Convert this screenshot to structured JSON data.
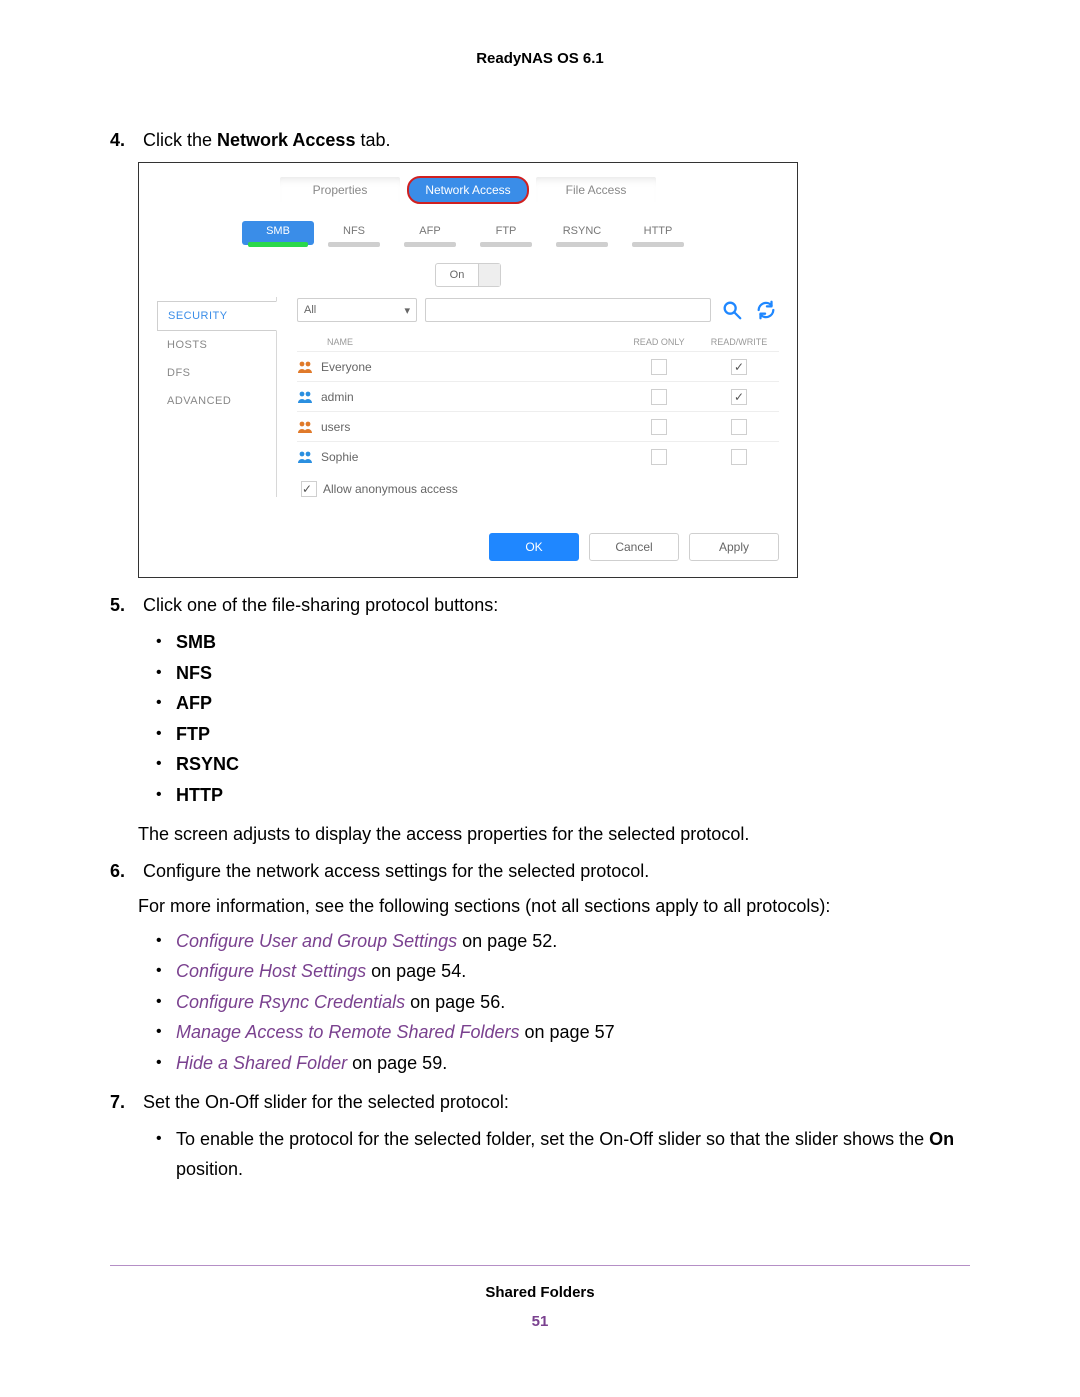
{
  "doc": {
    "header": "ReadyNAS OS 6.1",
    "footer_title": "Shared Folders",
    "page_number": "51"
  },
  "screenshot": {
    "top_tabs": [
      "Properties",
      "Network Access",
      "File Access"
    ],
    "top_tab_active_index": 1,
    "protocols": [
      "SMB",
      "NFS",
      "AFP",
      "FTP",
      "RSYNC",
      "HTTP"
    ],
    "protocol_active_index": 0,
    "onoff_label": "On",
    "left_nav": [
      "SECURITY",
      "HOSTS",
      "DFS",
      "ADVANCED"
    ],
    "left_nav_active_index": 0,
    "filter_select": "All",
    "table": {
      "head_name": "NAME",
      "head_ro": "READ ONLY",
      "head_rw": "READ/WRITE",
      "rows": [
        {
          "icon_color": "#e07a2a",
          "name": "Everyone",
          "ro": false,
          "rw": true
        },
        {
          "icon_color": "#2a8fe0",
          "name": "admin",
          "ro": false,
          "rw": true
        },
        {
          "icon_color": "#e07a2a",
          "name": "users",
          "ro": false,
          "rw": false
        },
        {
          "icon_color": "#2a8fe0",
          "name": "Sophie",
          "ro": false,
          "rw": false
        }
      ]
    },
    "allow_anon_label": "Allow anonymous access",
    "allow_anon_checked": true,
    "buttons": {
      "ok": "OK",
      "cancel": "Cancel",
      "apply": "Apply"
    },
    "colors": {
      "tab_active_bg": "#3a8de8",
      "highlight_ring": "#d02020",
      "proto_active_underline": "#2bd84b",
      "search_icon": "#1f87ff",
      "refresh_icon": "#1f87ff"
    }
  },
  "steps": {
    "s4_num": "4.",
    "s4_pre": "Click the ",
    "s4_bold": "Network Access",
    "s4_post": " tab.",
    "s5_num": "5.",
    "s5_text": "Click one of the file-sharing protocol buttons:",
    "s5_bullets": [
      "SMB",
      "NFS",
      "AFP",
      "FTP",
      "RSYNC",
      "HTTP"
    ],
    "s5_tail": "The screen adjusts to display the access properties for the selected protocol.",
    "s6_num": "6.",
    "s6_text": "Configure the network access settings for the selected protocol.",
    "s6_sub": "For more information, see the following sections (not all sections apply to all protocols):",
    "s6_links": [
      {
        "t": "Configure User and Group Settings",
        "p": " on page 52."
      },
      {
        "t": "Configure Host Settings",
        "p": " on page 54."
      },
      {
        "t": "Configure Rsync Credentials",
        "p": " on page 56."
      },
      {
        "t": "Manage Access to Remote Shared Folders",
        "p": " on page 57"
      },
      {
        "t": "Hide a Shared Folder",
        "p": " on page 59."
      }
    ],
    "s7_num": "7.",
    "s7_text": "Set the On-Off slider for the selected protocol:",
    "s7_b1_pre": "To enable the protocol for the selected folder, set the On-Off slider so that the slider shows the ",
    "s7_b1_bold": "On",
    "s7_b1_post": " position."
  }
}
